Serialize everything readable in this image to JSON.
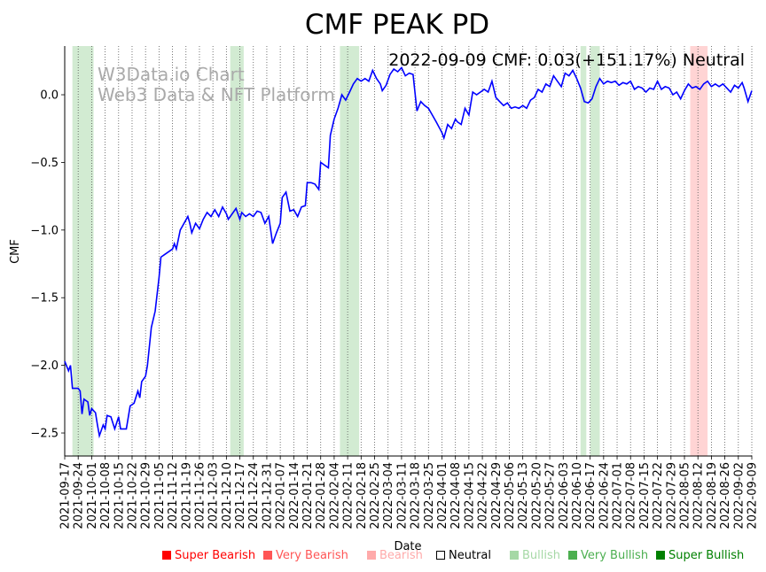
{
  "chart_data": {
    "type": "line",
    "title": "CMF PEAK PD",
    "xlabel": "Date",
    "ylabel": "CMF",
    "ylim": [
      -2.67,
      0.36
    ],
    "xlim": [
      "2021-09-17",
      "2022-09-09"
    ],
    "yticks": [
      0.0,
      -0.5,
      -1.0,
      -1.5,
      -2.0,
      -2.5
    ],
    "xticks": [
      "2021-09-17",
      "2021-09-24",
      "2021-10-01",
      "2021-10-08",
      "2021-10-15",
      "2021-10-22",
      "2021-10-29",
      "2021-11-05",
      "2021-11-12",
      "2021-11-19",
      "2021-11-26",
      "2021-12-03",
      "2021-12-10",
      "2021-12-17",
      "2021-12-24",
      "2021-12-31",
      "2022-01-07",
      "2022-01-14",
      "2022-01-21",
      "2022-01-28",
      "2022-02-04",
      "2022-02-11",
      "2022-02-18",
      "2022-02-25",
      "2022-03-04",
      "2022-03-11",
      "2022-03-18",
      "2022-03-25",
      "2022-04-01",
      "2022-04-08",
      "2022-04-15",
      "2022-04-22",
      "2022-04-29",
      "2022-05-06",
      "2022-05-13",
      "2022-05-20",
      "2022-05-27",
      "2022-06-03",
      "2022-06-10",
      "2022-06-17",
      "2022-06-24",
      "2022-07-01",
      "2022-07-08",
      "2022-07-15",
      "2022-07-22",
      "2022-07-29",
      "2022-08-05",
      "2022-08-12",
      "2022-08-19",
      "2022-08-26",
      "2022-09-02",
      "2022-09-09"
    ],
    "grid": "vertical-dotted",
    "line_color": "#0000ff",
    "series": [
      {
        "points": [
          [
            "2021-09-17",
            -1.97
          ],
          [
            "2021-09-19",
            -2.04
          ],
          [
            "2021-09-20",
            -2.0
          ],
          [
            "2021-09-21",
            -2.17
          ],
          [
            "2021-09-24",
            -2.17
          ],
          [
            "2021-09-25",
            -2.19
          ],
          [
            "2021-09-26",
            -2.36
          ],
          [
            "2021-09-27",
            -2.25
          ],
          [
            "2021-09-29",
            -2.27
          ],
          [
            "2021-09-30",
            -2.37
          ],
          [
            "2021-10-01",
            -2.32
          ],
          [
            "2021-10-03",
            -2.35
          ],
          [
            "2021-10-04",
            -2.44
          ],
          [
            "2021-10-05",
            -2.52
          ],
          [
            "2021-10-07",
            -2.44
          ],
          [
            "2021-10-08",
            -2.47
          ],
          [
            "2021-10-09",
            -2.37
          ],
          [
            "2021-10-11",
            -2.38
          ],
          [
            "2021-10-13",
            -2.47
          ],
          [
            "2021-10-15",
            -2.38
          ],
          [
            "2021-10-16",
            -2.47
          ],
          [
            "2021-10-19",
            -2.47
          ],
          [
            "2021-10-21",
            -2.3
          ],
          [
            "2021-10-23",
            -2.28
          ],
          [
            "2021-10-25",
            -2.19
          ],
          [
            "2021-10-26",
            -2.24
          ],
          [
            "2021-10-27",
            -2.12
          ],
          [
            "2021-10-29",
            -2.08
          ],
          [
            "2021-10-30",
            -2.0
          ],
          [
            "2021-11-01",
            -1.72
          ],
          [
            "2021-11-03",
            -1.6
          ],
          [
            "2021-11-05",
            -1.35
          ],
          [
            "2021-11-06",
            -1.2
          ],
          [
            "2021-11-08",
            -1.18
          ],
          [
            "2021-11-10",
            -1.16
          ],
          [
            "2021-11-12",
            -1.14
          ],
          [
            "2021-11-13",
            -1.1
          ],
          [
            "2021-11-14",
            -1.14
          ],
          [
            "2021-11-16",
            -1.0
          ],
          [
            "2021-11-18",
            -0.95
          ],
          [
            "2021-11-20",
            -0.9
          ],
          [
            "2021-11-21",
            -0.95
          ],
          [
            "2021-11-22",
            -1.02
          ],
          [
            "2021-11-24",
            -0.95
          ],
          [
            "2021-11-26",
            -0.99
          ],
          [
            "2021-11-28",
            -0.92
          ],
          [
            "2021-11-30",
            -0.87
          ],
          [
            "2021-12-02",
            -0.9
          ],
          [
            "2021-12-04",
            -0.85
          ],
          [
            "2021-12-06",
            -0.9
          ],
          [
            "2021-12-08",
            -0.83
          ],
          [
            "2021-12-10",
            -0.88
          ],
          [
            "2021-12-11",
            -0.92
          ],
          [
            "2021-12-13",
            -0.88
          ],
          [
            "2021-12-15",
            -0.84
          ],
          [
            "2021-12-17",
            -0.92
          ],
          [
            "2021-12-18",
            -0.87
          ],
          [
            "2021-12-20",
            -0.9
          ],
          [
            "2021-12-22",
            -0.88
          ],
          [
            "2021-12-24",
            -0.9
          ],
          [
            "2021-12-26",
            -0.86
          ],
          [
            "2021-12-28",
            -0.87
          ],
          [
            "2021-12-30",
            -0.95
          ],
          [
            "2022-01-01",
            -0.9
          ],
          [
            "2022-01-03",
            -1.1
          ],
          [
            "2022-01-05",
            -1.02
          ],
          [
            "2022-01-07",
            -0.95
          ],
          [
            "2022-01-08",
            -0.76
          ],
          [
            "2022-01-10",
            -0.72
          ],
          [
            "2022-01-12",
            -0.86
          ],
          [
            "2022-01-14",
            -0.85
          ],
          [
            "2022-01-16",
            -0.9
          ],
          [
            "2022-01-18",
            -0.83
          ],
          [
            "2022-01-20",
            -0.82
          ],
          [
            "2022-01-21",
            -0.65
          ],
          [
            "2022-01-23",
            -0.65
          ],
          [
            "2022-01-25",
            -0.66
          ],
          [
            "2022-01-27",
            -0.7
          ],
          [
            "2022-01-28",
            -0.5
          ],
          [
            "2022-01-30",
            -0.52
          ],
          [
            "2022-02-01",
            -0.54
          ],
          [
            "2022-02-02",
            -0.3
          ],
          [
            "2022-02-04",
            -0.18
          ],
          [
            "2022-02-06",
            -0.1
          ],
          [
            "2022-02-08",
            0.0
          ],
          [
            "2022-02-10",
            -0.04
          ],
          [
            "2022-02-12",
            0.02
          ],
          [
            "2022-02-14",
            0.08
          ],
          [
            "2022-02-16",
            0.12
          ],
          [
            "2022-02-18",
            0.1
          ],
          [
            "2022-02-20",
            0.12
          ],
          [
            "2022-02-22",
            0.1
          ],
          [
            "2022-02-24",
            0.18
          ],
          [
            "2022-02-26",
            0.12
          ],
          [
            "2022-02-28",
            0.08
          ],
          [
            "2022-03-01",
            0.03
          ],
          [
            "2022-03-03",
            0.07
          ],
          [
            "2022-03-05",
            0.15
          ],
          [
            "2022-03-07",
            0.19
          ],
          [
            "2022-03-09",
            0.17
          ],
          [
            "2022-03-11",
            0.2
          ],
          [
            "2022-03-13",
            0.14
          ],
          [
            "2022-03-15",
            0.16
          ],
          [
            "2022-03-17",
            0.15
          ],
          [
            "2022-03-19",
            -0.12
          ],
          [
            "2022-03-21",
            -0.05
          ],
          [
            "2022-03-23",
            -0.08
          ],
          [
            "2022-03-25",
            -0.1
          ],
          [
            "2022-03-27",
            -0.15
          ],
          [
            "2022-03-29",
            -0.2
          ],
          [
            "2022-04-01",
            -0.28
          ],
          [
            "2022-04-02",
            -0.32
          ],
          [
            "2022-04-04",
            -0.22
          ],
          [
            "2022-04-06",
            -0.25
          ],
          [
            "2022-04-08",
            -0.18
          ],
          [
            "2022-04-09",
            -0.2
          ],
          [
            "2022-04-11",
            -0.22
          ],
          [
            "2022-04-13",
            -0.1
          ],
          [
            "2022-04-15",
            -0.15
          ],
          [
            "2022-04-17",
            0.02
          ],
          [
            "2022-04-19",
            0.0
          ],
          [
            "2022-04-21",
            0.02
          ],
          [
            "2022-04-23",
            0.04
          ],
          [
            "2022-04-25",
            0.02
          ],
          [
            "2022-04-27",
            0.1
          ],
          [
            "2022-04-29",
            -0.02
          ],
          [
            "2022-05-01",
            -0.05
          ],
          [
            "2022-05-03",
            -0.08
          ],
          [
            "2022-05-05",
            -0.06
          ],
          [
            "2022-05-07",
            -0.1
          ],
          [
            "2022-05-09",
            -0.09
          ],
          [
            "2022-05-11",
            -0.1
          ],
          [
            "2022-05-13",
            -0.08
          ],
          [
            "2022-05-15",
            -0.1
          ],
          [
            "2022-05-17",
            -0.04
          ],
          [
            "2022-05-19",
            -0.02
          ],
          [
            "2022-05-21",
            0.04
          ],
          [
            "2022-05-23",
            0.02
          ],
          [
            "2022-05-25",
            0.08
          ],
          [
            "2022-05-27",
            0.06
          ],
          [
            "2022-05-29",
            0.14
          ],
          [
            "2022-05-31",
            0.1
          ],
          [
            "2022-06-02",
            0.06
          ],
          [
            "2022-06-04",
            0.16
          ],
          [
            "2022-06-06",
            0.14
          ],
          [
            "2022-06-08",
            0.18
          ],
          [
            "2022-06-10",
            0.12
          ],
          [
            "2022-06-12",
            0.05
          ],
          [
            "2022-06-14",
            -0.05
          ],
          [
            "2022-06-16",
            -0.06
          ],
          [
            "2022-06-18",
            -0.03
          ],
          [
            "2022-06-20",
            0.06
          ],
          [
            "2022-06-22",
            0.12
          ],
          [
            "2022-06-24",
            0.08
          ],
          [
            "2022-06-26",
            0.1
          ],
          [
            "2022-06-28",
            0.09
          ],
          [
            "2022-06-30",
            0.1
          ],
          [
            "2022-07-02",
            0.07
          ],
          [
            "2022-07-04",
            0.09
          ],
          [
            "2022-07-06",
            0.08
          ],
          [
            "2022-07-08",
            0.1
          ],
          [
            "2022-07-10",
            0.04
          ],
          [
            "2022-07-12",
            0.06
          ],
          [
            "2022-07-14",
            0.05
          ],
          [
            "2022-07-16",
            0.02
          ],
          [
            "2022-07-18",
            0.05
          ],
          [
            "2022-07-20",
            0.04
          ],
          [
            "2022-07-22",
            0.1
          ],
          [
            "2022-07-24",
            0.04
          ],
          [
            "2022-07-26",
            0.06
          ],
          [
            "2022-07-28",
            0.05
          ],
          [
            "2022-07-30",
            0.0
          ],
          [
            "2022-08-01",
            0.02
          ],
          [
            "2022-08-03",
            -0.03
          ],
          [
            "2022-08-05",
            0.03
          ],
          [
            "2022-08-07",
            0.08
          ],
          [
            "2022-08-09",
            0.05
          ],
          [
            "2022-08-11",
            0.06
          ],
          [
            "2022-08-13",
            0.04
          ],
          [
            "2022-08-15",
            0.08
          ],
          [
            "2022-08-17",
            0.1
          ],
          [
            "2022-08-19",
            0.06
          ],
          [
            "2022-08-21",
            0.08
          ],
          [
            "2022-08-23",
            0.06
          ],
          [
            "2022-08-25",
            0.08
          ],
          [
            "2022-08-27",
            0.05
          ],
          [
            "2022-08-29",
            0.02
          ],
          [
            "2022-08-31",
            0.07
          ],
          [
            "2022-09-02",
            0.05
          ],
          [
            "2022-09-04",
            0.09
          ],
          [
            "2022-09-05",
            0.05
          ],
          [
            "2022-09-07",
            -0.05
          ],
          [
            "2022-09-09",
            0.03
          ]
        ]
      }
    ],
    "shaded_regions": [
      {
        "start": "2021-09-21",
        "end": "2021-10-02",
        "class": "Bullish",
        "color": "#a6d8a6"
      },
      {
        "start": "2021-12-12",
        "end": "2021-12-19",
        "class": "Bullish",
        "color": "#a6d8a6"
      },
      {
        "start": "2022-02-07",
        "end": "2022-02-17",
        "class": "Bullish",
        "color": "#a6d8a6"
      },
      {
        "start": "2022-06-12",
        "end": "2022-06-15",
        "class": "Bullish",
        "color": "#a6d8a6"
      },
      {
        "start": "2022-06-17",
        "end": "2022-06-22",
        "class": "Bullish",
        "color": "#a6d8a6"
      },
      {
        "start": "2022-08-08",
        "end": "2022-08-17",
        "class": "Bearish",
        "color": "#ffaaaa"
      }
    ],
    "annotation": "2022-09-09 CMF: 0.03(+151.17%) Neutral",
    "watermark": [
      "W3Data.io Chart",
      "Web3 Data & NFT Platform"
    ],
    "legend": [
      {
        "label": "Super Bearish",
        "color": "#ff0000",
        "filled": true
      },
      {
        "label": "Very Bearish",
        "color": "#ff5555",
        "filled": true
      },
      {
        "label": "Bearish",
        "color": "#ffaaaa",
        "filled": true
      },
      {
        "label": "Neutral",
        "color": "#000000",
        "filled": false
      },
      {
        "label": "Bullish",
        "color": "#a6d8a6",
        "filled": true
      },
      {
        "label": "Very Bullish",
        "color": "#4caf50",
        "filled": true
      },
      {
        "label": "Super Bullish",
        "color": "#008000",
        "filled": true
      }
    ]
  }
}
